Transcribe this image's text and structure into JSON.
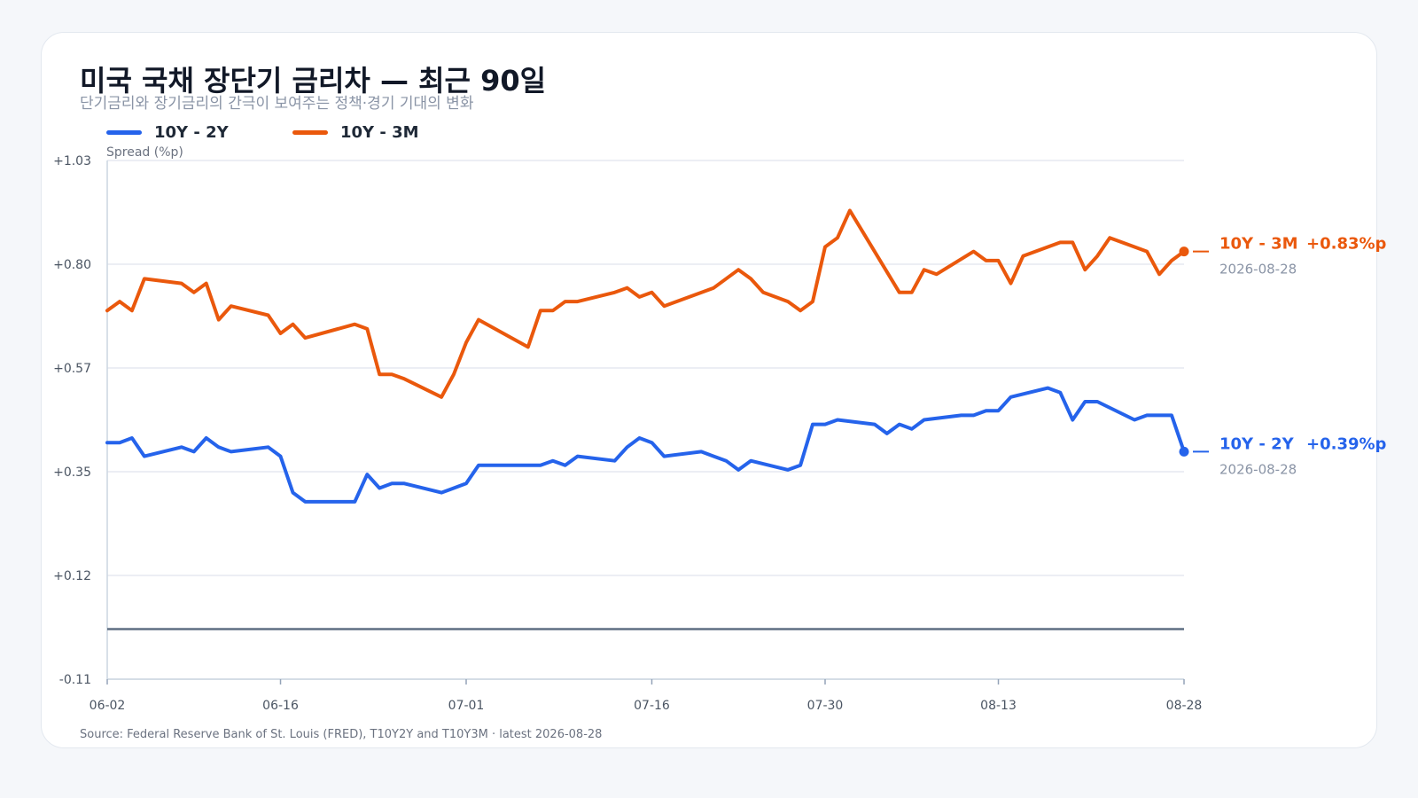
{
  "header": {
    "title": "미국 국채 장단기 금리차 — 최근 90일",
    "subtitle": "단기금리와 장기금리의 간극이 보여주는 정책·경기 기대의 변화"
  },
  "legend": [
    {
      "label": "10Y - 2Y",
      "color": "#2563eb"
    },
    {
      "label": "10Y - 3M",
      "color": "#ea580c"
    }
  ],
  "footer": {
    "source": "Source: Federal Reserve Bank of St. Louis (FRED), T10Y2Y and T10Y3M · latest 2026-08-28"
  },
  "chart_data": {
    "type": "line",
    "ylabel": "Spread (%p)",
    "ylim": [
      -0.11,
      1.03
    ],
    "y_ticks": [
      "+1.03",
      "+0.80",
      "+0.57",
      "+0.35",
      "+0.12",
      "-0.11"
    ],
    "x_range": [
      "2026-06-02",
      "2026-08-28"
    ],
    "x_ticks": [
      "06-02",
      "06-16",
      "07-01",
      "07-16",
      "07-30",
      "08-13",
      "08-28"
    ],
    "x_tick_dates": [
      "2026-06-02",
      "2026-06-16",
      "2026-07-01",
      "2026-07-16",
      "2026-07-30",
      "2026-08-13",
      "2026-08-28"
    ],
    "reference_line": 0.0,
    "grid": true,
    "legend_position": "top-left",
    "series": [
      {
        "name": "10Y - 2Y",
        "color": "#2563eb",
        "end_label": "10Y - 2Y",
        "end_value_label": "+0.39%p",
        "end_date_label": "2026-08-28",
        "points": [
          [
            "2026-06-02",
            0.41
          ],
          [
            "2026-06-03",
            0.41
          ],
          [
            "2026-06-04",
            0.42
          ],
          [
            "2026-06-05",
            0.38
          ],
          [
            "2026-06-08",
            0.4
          ],
          [
            "2026-06-09",
            0.39
          ],
          [
            "2026-06-10",
            0.42
          ],
          [
            "2026-06-11",
            0.4
          ],
          [
            "2026-06-12",
            0.39
          ],
          [
            "2026-06-15",
            0.4
          ],
          [
            "2026-06-16",
            0.38
          ],
          [
            "2026-06-17",
            0.3
          ],
          [
            "2026-06-18",
            0.28
          ],
          [
            "2026-06-19",
            0.28
          ],
          [
            "2026-06-22",
            0.28
          ],
          [
            "2026-06-23",
            0.34
          ],
          [
            "2026-06-24",
            0.31
          ],
          [
            "2026-06-25",
            0.32
          ],
          [
            "2026-06-26",
            0.32
          ],
          [
            "2026-06-29",
            0.3
          ],
          [
            "2026-06-30",
            0.31
          ],
          [
            "2026-07-01",
            0.32
          ],
          [
            "2026-07-02",
            0.36
          ],
          [
            "2026-07-03",
            0.36
          ],
          [
            "2026-07-06",
            0.36
          ],
          [
            "2026-07-07",
            0.36
          ],
          [
            "2026-07-08",
            0.37
          ],
          [
            "2026-07-09",
            0.36
          ],
          [
            "2026-07-10",
            0.38
          ],
          [
            "2026-07-13",
            0.37
          ],
          [
            "2026-07-14",
            0.4
          ],
          [
            "2026-07-15",
            0.42
          ],
          [
            "2026-07-16",
            0.41
          ],
          [
            "2026-07-17",
            0.38
          ],
          [
            "2026-07-20",
            0.39
          ],
          [
            "2026-07-21",
            0.38
          ],
          [
            "2026-07-22",
            0.37
          ],
          [
            "2026-07-23",
            0.35
          ],
          [
            "2026-07-24",
            0.37
          ],
          [
            "2026-07-27",
            0.35
          ],
          [
            "2026-07-28",
            0.36
          ],
          [
            "2026-07-29",
            0.45
          ],
          [
            "2026-07-30",
            0.45
          ],
          [
            "2026-07-31",
            0.46
          ],
          [
            "2026-08-03",
            0.45
          ],
          [
            "2026-08-04",
            0.43
          ],
          [
            "2026-08-05",
            0.45
          ],
          [
            "2026-08-06",
            0.44
          ],
          [
            "2026-08-07",
            0.46
          ],
          [
            "2026-08-10",
            0.47
          ],
          [
            "2026-08-11",
            0.47
          ],
          [
            "2026-08-12",
            0.48
          ],
          [
            "2026-08-13",
            0.48
          ],
          [
            "2026-08-14",
            0.51
          ],
          [
            "2026-08-17",
            0.53
          ],
          [
            "2026-08-18",
            0.52
          ],
          [
            "2026-08-19",
            0.46
          ],
          [
            "2026-08-20",
            0.5
          ],
          [
            "2026-08-21",
            0.5
          ],
          [
            "2026-08-24",
            0.46
          ],
          [
            "2026-08-25",
            0.47
          ],
          [
            "2026-08-26",
            0.47
          ],
          [
            "2026-08-27",
            0.47
          ],
          [
            "2026-08-28",
            0.39
          ]
        ]
      },
      {
        "name": "10Y - 3M",
        "color": "#ea580c",
        "end_label": "10Y - 3M",
        "end_value_label": "+0.83%p",
        "end_date_label": "2026-08-28",
        "points": [
          [
            "2026-06-02",
            0.7
          ],
          [
            "2026-06-03",
            0.72
          ],
          [
            "2026-06-04",
            0.7
          ],
          [
            "2026-06-05",
            0.77
          ],
          [
            "2026-06-08",
            0.76
          ],
          [
            "2026-06-09",
            0.74
          ],
          [
            "2026-06-10",
            0.76
          ],
          [
            "2026-06-11",
            0.68
          ],
          [
            "2026-06-12",
            0.71
          ],
          [
            "2026-06-15",
            0.69
          ],
          [
            "2026-06-16",
            0.65
          ],
          [
            "2026-06-17",
            0.67
          ],
          [
            "2026-06-18",
            0.64
          ],
          [
            "2026-06-22",
            0.67
          ],
          [
            "2026-06-23",
            0.66
          ],
          [
            "2026-06-24",
            0.56
          ],
          [
            "2026-06-25",
            0.56
          ],
          [
            "2026-06-26",
            0.55
          ],
          [
            "2026-06-29",
            0.51
          ],
          [
            "2026-06-30",
            0.56
          ],
          [
            "2026-07-01",
            0.63
          ],
          [
            "2026-07-02",
            0.68
          ],
          [
            "2026-07-06",
            0.62
          ],
          [
            "2026-07-07",
            0.7
          ],
          [
            "2026-07-08",
            0.7
          ],
          [
            "2026-07-09",
            0.72
          ],
          [
            "2026-07-10",
            0.72
          ],
          [
            "2026-07-13",
            0.74
          ],
          [
            "2026-07-14",
            0.75
          ],
          [
            "2026-07-15",
            0.73
          ],
          [
            "2026-07-16",
            0.74
          ],
          [
            "2026-07-17",
            0.71
          ],
          [
            "2026-07-21",
            0.75
          ],
          [
            "2026-07-23",
            0.79
          ],
          [
            "2026-07-24",
            0.77
          ],
          [
            "2026-07-25",
            0.74
          ],
          [
            "2026-07-27",
            0.72
          ],
          [
            "2026-07-28",
            0.7
          ],
          [
            "2026-07-29",
            0.72
          ],
          [
            "2026-07-30",
            0.84
          ],
          [
            "2026-07-31",
            0.86
          ],
          [
            "2026-08-01",
            0.92
          ],
          [
            "2026-08-05",
            0.74
          ],
          [
            "2026-08-06",
            0.74
          ],
          [
            "2026-08-07",
            0.79
          ],
          [
            "2026-08-08",
            0.78
          ],
          [
            "2026-08-11",
            0.83
          ],
          [
            "2026-08-12",
            0.81
          ],
          [
            "2026-08-13",
            0.81
          ],
          [
            "2026-08-14",
            0.76
          ],
          [
            "2026-08-15",
            0.82
          ],
          [
            "2026-08-18",
            0.85
          ],
          [
            "2026-08-19",
            0.85
          ],
          [
            "2026-08-20",
            0.79
          ],
          [
            "2026-08-21",
            0.82
          ],
          [
            "2026-08-22",
            0.86
          ],
          [
            "2026-08-25",
            0.83
          ],
          [
            "2026-08-26",
            0.78
          ],
          [
            "2026-08-27",
            0.81
          ],
          [
            "2026-08-28",
            0.83
          ]
        ]
      }
    ]
  }
}
